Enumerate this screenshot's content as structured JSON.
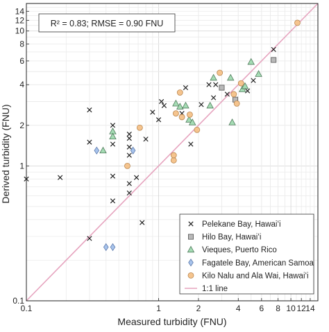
{
  "chart_data": {
    "type": "scatter",
    "xscale": "log",
    "yscale": "log",
    "xlim": [
      0.1,
      16
    ],
    "ylim": [
      0.1,
      16
    ],
    "xlabel": "Measured turbidity (FNU)",
    "ylabel": "Derived turbidity (FNU)",
    "grid": true,
    "stats_text": "R² = 0.83; RMSE = 0.90 FNU",
    "legend_position": "bottom-right",
    "x_ticks": [
      {
        "value": 0.1,
        "label": "0.1"
      },
      {
        "value": 1,
        "label": "1"
      },
      {
        "value": 2,
        "label": "2"
      },
      {
        "value": 4,
        "label": "4"
      },
      {
        "value": 6,
        "label": "6"
      },
      {
        "value": 8,
        "label": "8"
      },
      {
        "value": 10,
        "label": "10"
      },
      {
        "value": 12,
        "label": "12"
      },
      {
        "value": 14,
        "label": "14"
      }
    ],
    "y_ticks": [
      {
        "value": 0.1,
        "label": "0.1"
      },
      {
        "value": 1,
        "label": "1"
      },
      {
        "value": 2,
        "label": "2"
      },
      {
        "value": 4,
        "label": "4"
      },
      {
        "value": 6,
        "label": "6"
      },
      {
        "value": 8,
        "label": "8"
      },
      {
        "value": 10,
        "label": "10"
      },
      {
        "value": 12,
        "label": "12"
      },
      {
        "value": 14,
        "label": "14"
      }
    ],
    "series": [
      {
        "name": "Pelekane Bay, Hawaiʻi",
        "marker": "x",
        "color": "#222222",
        "points": [
          [
            0.1,
            0.8
          ],
          [
            0.18,
            0.82
          ],
          [
            0.3,
            2.6
          ],
          [
            0.3,
            1.5
          ],
          [
            0.3,
            0.29
          ],
          [
            0.45,
            2.0
          ],
          [
            0.45,
            1.45
          ],
          [
            0.45,
            0.84
          ],
          [
            0.45,
            0.55
          ],
          [
            0.6,
            1.72
          ],
          [
            0.6,
            1.6
          ],
          [
            0.6,
            1.38
          ],
          [
            0.6,
            1.2
          ],
          [
            0.6,
            0.74
          ],
          [
            0.6,
            0.63
          ],
          [
            0.68,
            0.82
          ],
          [
            0.75,
            0.38
          ],
          [
            0.8,
            1.58
          ],
          [
            0.9,
            2.5
          ],
          [
            1.0,
            2.2
          ],
          [
            1.05,
            3.0
          ],
          [
            1.1,
            2.8
          ],
          [
            1.5,
            2.45
          ],
          [
            1.6,
            3.8
          ],
          [
            1.75,
            1.45
          ],
          [
            2.1,
            2.85
          ],
          [
            2.4,
            4.0
          ],
          [
            2.6,
            3.2
          ],
          [
            2.7,
            4.0
          ],
          [
            3.3,
            3.4
          ],
          [
            4.7,
            3.6
          ],
          [
            5.2,
            4.3
          ],
          [
            7.4,
            7.3
          ]
        ]
      },
      {
        "name": "Hilo Bay, Hawaiʻi",
        "marker": "square",
        "color": "#b9b9b9",
        "points": [
          [
            3.0,
            3.8
          ],
          [
            3.8,
            3.1
          ],
          [
            7.4,
            6.1
          ]
        ]
      },
      {
        "name": "Vieques, Puerto Rico",
        "marker": "triangle",
        "color": "#a5dcb4",
        "points": [
          [
            0.38,
            1.3
          ],
          [
            0.45,
            1.8
          ],
          [
            0.45,
            1.65
          ],
          [
            1.35,
            2.9
          ],
          [
            1.45,
            2.75
          ],
          [
            1.6,
            2.8
          ],
          [
            1.7,
            2.2
          ],
          [
            1.8,
            2.1
          ],
          [
            2.45,
            2.8
          ],
          [
            2.6,
            4.5
          ],
          [
            3.5,
            4.5
          ],
          [
            3.6,
            2.1
          ],
          [
            4.3,
            3.7
          ],
          [
            4.5,
            3.9
          ],
          [
            5.0,
            5.9
          ],
          [
            5.7,
            4.8
          ]
        ]
      },
      {
        "name": "Fagatele Bay, American Samoa",
        "marker": "diamond",
        "color": "#a7c3ec",
        "points": [
          [
            0.34,
            1.3
          ],
          [
            0.4,
            0.25
          ],
          [
            0.45,
            0.25
          ],
          [
            0.64,
            1.3
          ]
        ]
      },
      {
        "name": "Kilo Nalu and Ala Wai, Hawaiʻi",
        "marker": "circle",
        "color": "#f5c48e",
        "points": [
          [
            0.58,
            1.0
          ],
          [
            0.72,
            1.92
          ],
          [
            1.3,
            1.1
          ],
          [
            1.3,
            1.2
          ],
          [
            1.35,
            2.45
          ],
          [
            1.45,
            3.5
          ],
          [
            1.5,
            2.3
          ],
          [
            1.72,
            2.4
          ],
          [
            1.95,
            1.85
          ],
          [
            2.9,
            4.9
          ],
          [
            3.7,
            3.4
          ],
          [
            3.9,
            2.9
          ],
          [
            4.2,
            4.1
          ],
          [
            11.2,
            11.5
          ]
        ]
      },
      {
        "name": "1:1 line",
        "marker": "line",
        "color": "#e6a3be",
        "points": [
          [
            0.1,
            0.1
          ],
          [
            16,
            16
          ]
        ]
      }
    ]
  }
}
